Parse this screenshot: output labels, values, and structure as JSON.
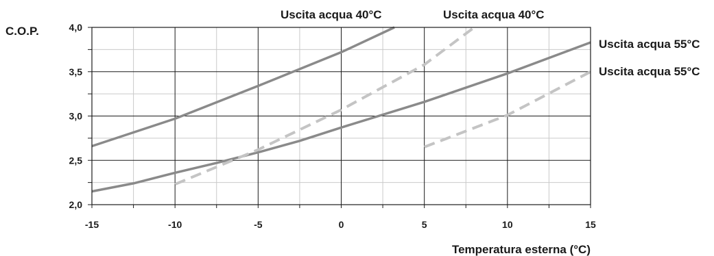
{
  "chart_data": {
    "type": "line",
    "title": "",
    "ylabel": "C.O.P.",
    "xlabel": "Temperatura esterna (°C)",
    "xlim": [
      -15,
      15
    ],
    "ylim": [
      2.0,
      4.0
    ],
    "x_major_ticks": [
      -15,
      -10,
      -5,
      0,
      5,
      10,
      15
    ],
    "x_tick_labels": [
      "-15",
      "-10",
      "-5",
      "0",
      "5",
      "10",
      "15"
    ],
    "x_minor_step": 2.5,
    "y_major_ticks": [
      2.0,
      2.5,
      3.0,
      3.5,
      4.0
    ],
    "y_tick_labels": [
      "2,0",
      "2,5",
      "3,0",
      "3,5",
      "4,0"
    ],
    "y_minor_step": 0.25,
    "grid": true,
    "series": [
      {
        "label": "Uscita acqua 40°C",
        "style": "solid",
        "color": "#8a8a8a",
        "x": [
          -15,
          -10,
          -5,
          0,
          3.2
        ],
        "y": [
          2.66,
          2.97,
          3.34,
          3.72,
          4.0
        ]
      },
      {
        "label": "Uscita acqua 55°C",
        "style": "solid",
        "color": "#8a8a8a",
        "x": [
          -15,
          -12.5,
          -10,
          -7.5,
          -5,
          -2.5,
          0,
          5,
          10,
          15
        ],
        "y": [
          2.15,
          2.24,
          2.36,
          2.47,
          2.59,
          2.72,
          2.87,
          3.16,
          3.48,
          3.83
        ]
      },
      {
        "label": "Uscita acqua 40°C",
        "style": "dashed",
        "color": "#c4c4c4",
        "x": [
          -10,
          -5,
          0,
          5,
          8
        ],
        "y": [
          2.23,
          2.62,
          3.07,
          3.58,
          4.0
        ]
      },
      {
        "label": "Uscita acqua 55°C",
        "style": "dashed",
        "color": "#c4c4c4",
        "x": [
          5,
          10,
          15
        ],
        "y": [
          2.65,
          3.01,
          3.5
        ]
      }
    ]
  }
}
